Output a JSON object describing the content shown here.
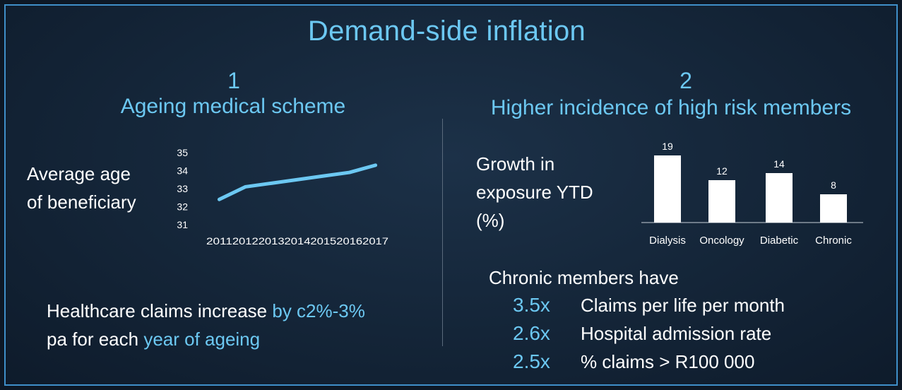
{
  "title": "Demand-side inflation",
  "left": {
    "number": "1",
    "subtitle": "Ageing medical scheme",
    "label_lines": [
      "Average age",
      "of beneficiary"
    ],
    "claims_text": {
      "part1": "Healthcare claims increase ",
      "highlight1": "by c2%-3%",
      "part2": "pa for each ",
      "highlight2": "year of ageing"
    }
  },
  "right": {
    "number": "2",
    "subtitle": "Higher incidence of high risk members",
    "label_lines": [
      "Growth in",
      "exposure YTD",
      "(%)"
    ],
    "chronic_title": "Chronic members have",
    "stats": [
      {
        "multiplier": "3.5x",
        "description": "Claims per life per month"
      },
      {
        "multiplier": "2.6x",
        "description": "Hospital admission rate"
      },
      {
        "multiplier": "2.5x",
        "description": "% claims > R100 000"
      }
    ]
  },
  "colors": {
    "accent": "#6cc8f2",
    "line": "#6cc8f2",
    "bar": "#ffffff",
    "border": "#3f8fc9"
  },
  "chart_data": [
    {
      "type": "line",
      "title": "",
      "x": [
        "2011",
        "2012",
        "2013",
        "2014",
        "2015",
        "2016",
        "2017"
      ],
      "series": [
        {
          "values": [
            32.4,
            33.1,
            33.3,
            33.5,
            33.7,
            33.9,
            34.3
          ]
        }
      ],
      "yticks": [
        "31",
        "32",
        "33",
        "34",
        "35"
      ],
      "ylim": [
        31,
        35
      ],
      "grid": false
    },
    {
      "type": "bar",
      "title": "",
      "categories": [
        "Dialysis",
        "Oncology",
        "Diabetic",
        "Chronic"
      ],
      "values": [
        19,
        12,
        14,
        8
      ],
      "value_labels": [
        "19",
        "12",
        "14",
        "8"
      ],
      "ylim": [
        0,
        20
      ],
      "grid": false
    }
  ]
}
